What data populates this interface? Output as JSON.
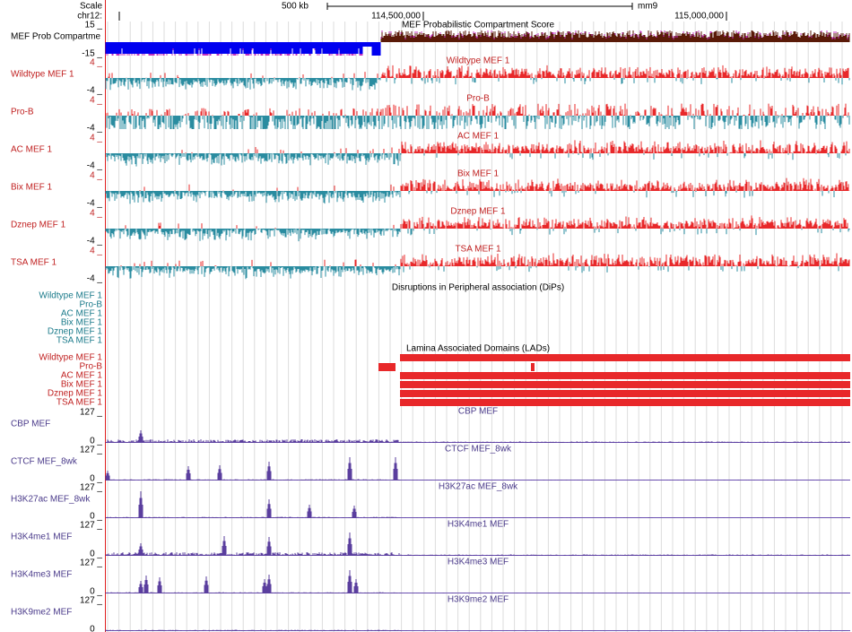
{
  "header": {
    "scale": "Scale",
    "chrom": "chr12:",
    "scale_bar": "500 kb",
    "assembly": "mm9",
    "positions": [
      "114,500,000",
      "115,000,000"
    ]
  },
  "compartment": {
    "title": "MEF Probabilistic Compartment Score",
    "label": "MEF Prob Compartme",
    "max": "15 _",
    "min": "-15 _"
  },
  "wiggle_tracks": [
    {
      "name": "Wildtype MEF 1",
      "max": "4 _",
      "min": "-4 _"
    },
    {
      "name": "Pro-B",
      "max": "4 _",
      "min": "-4 _"
    },
    {
      "name": "AC MEF 1",
      "max": "4 _",
      "min": "-4 _"
    },
    {
      "name": "Bix MEF 1",
      "max": "4 _",
      "min": "-4 _"
    },
    {
      "name": "Dznep MEF 1",
      "max": "4 _",
      "min": "-4 _"
    },
    {
      "name": "TSA MEF 1",
      "max": "4 _",
      "min": "-4 _"
    }
  ],
  "dips": {
    "title": "Disruptions in Peripheral association (DiPs)",
    "rows": [
      "Wildtype MEF 1",
      "Pro-B",
      "AC MEF 1",
      "Bix MEF 1",
      "Dznep MEF 1",
      "TSA MEF 1"
    ]
  },
  "lads": {
    "title": "Lamina Associated Domains (LADs)",
    "rows": [
      "Wildtype MEF 1",
      "Pro-B",
      "AC MEF 1",
      "Bix MEF 1",
      "Dznep MEF 1",
      "TSA MEF 1"
    ]
  },
  "chip_tracks": [
    {
      "name": "CBP MEF",
      "max": "127 _",
      "min": "0 _"
    },
    {
      "name": "CTCF MEF_8wk",
      "max": "127 _",
      "min": "0 _"
    },
    {
      "name": "H3K27ac MEF_8wk",
      "max": "127 _",
      "min": "0 _"
    },
    {
      "name": "H3K4me1 MEF",
      "max": "127 _",
      "min": "0 _"
    },
    {
      "name": "H3K4me3 MEF",
      "max": "127 _",
      "min": "0 _"
    },
    {
      "name": "H3K9me2 MEF",
      "max": "127 _",
      "min": "0 _"
    }
  ]
}
